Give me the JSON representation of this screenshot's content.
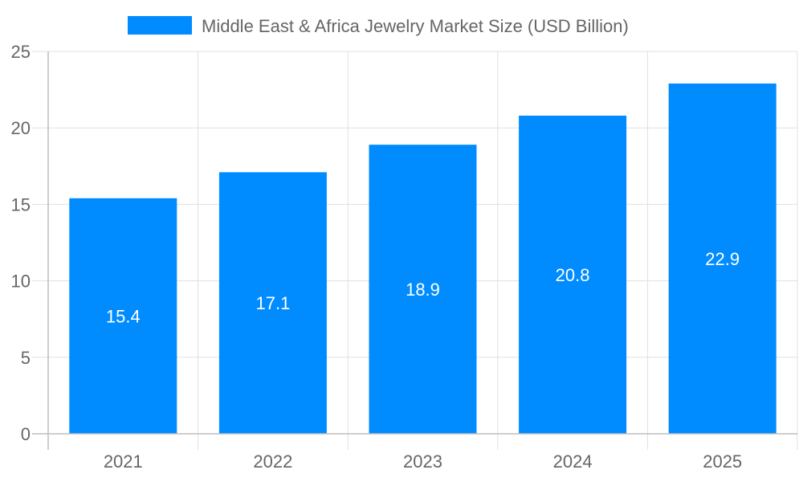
{
  "chart_data": {
    "type": "bar",
    "title": "",
    "xlabel": "",
    "ylabel": "",
    "categories": [
      "2021",
      "2022",
      "2023",
      "2024",
      "2025"
    ],
    "series": [
      {
        "name": "Middle East & Africa Jewelry Market Size (USD Billion)",
        "values": [
          15.4,
          17.1,
          18.9,
          20.8,
          22.9
        ],
        "color": "#008cff"
      }
    ],
    "data_labels": [
      "15.4",
      "17.1",
      "18.9",
      "20.8",
      "22.9"
    ],
    "ylim": [
      0,
      25
    ],
    "yticks": [
      "0",
      "5",
      "10",
      "15",
      "20",
      "25"
    ],
    "grid": true,
    "legend": "top-center"
  }
}
